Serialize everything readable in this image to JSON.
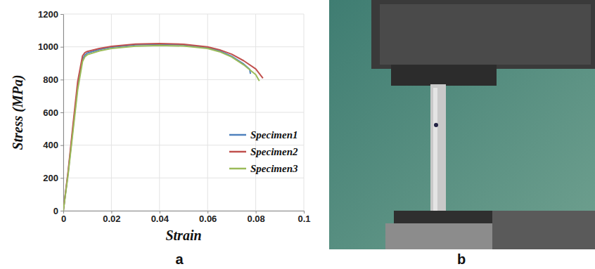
{
  "chart_data": {
    "type": "line",
    "panel_label": "a",
    "x_label": "Strain",
    "y_label": "Stress (MPa)",
    "xlim": [
      0,
      0.1
    ],
    "xticks": [
      0,
      0.02,
      0.04,
      0.06,
      0.08,
      0.1
    ],
    "ylim": [
      0,
      1200
    ],
    "yticks": [
      0,
      200,
      400,
      600,
      800,
      1000,
      1200
    ],
    "grid": true,
    "legend": "lower right",
    "series": [
      {
        "name": "Specimen1",
        "color": "#4f81bd",
        "x": [
          0,
          0.002,
          0.004,
          0.006,
          0.008,
          0.009,
          0.01,
          0.015,
          0.02,
          0.03,
          0.04,
          0.05,
          0.06,
          0.065,
          0.07,
          0.075,
          0.0775,
          0.0778
        ],
        "values": [
          0,
          230,
          500,
          760,
          925,
          950,
          962,
          983,
          998,
          1012,
          1016,
          1012,
          995,
          975,
          942,
          895,
          862,
          835
        ]
      },
      {
        "name": "Specimen2",
        "color": "#c0504d",
        "x": [
          0,
          0.002,
          0.004,
          0.006,
          0.008,
          0.009,
          0.01,
          0.015,
          0.02,
          0.03,
          0.04,
          0.05,
          0.06,
          0.065,
          0.07,
          0.075,
          0.08,
          0.083
        ],
        "values": [
          0,
          240,
          520,
          790,
          945,
          965,
          972,
          990,
          1003,
          1017,
          1020,
          1016,
          1000,
          982,
          955,
          915,
          865,
          808
        ]
      },
      {
        "name": "Specimen3",
        "color": "#9bbb59",
        "x": [
          0,
          0.002,
          0.004,
          0.006,
          0.008,
          0.009,
          0.01,
          0.015,
          0.02,
          0.03,
          0.04,
          0.05,
          0.06,
          0.065,
          0.07,
          0.075,
          0.08,
          0.0815
        ],
        "values": [
          0,
          220,
          480,
          740,
          910,
          940,
          952,
          975,
          990,
          1004,
          1008,
          1005,
          990,
          970,
          938,
          890,
          830,
          792
        ]
      }
    ]
  },
  "photo": {
    "panel_label": "b"
  }
}
